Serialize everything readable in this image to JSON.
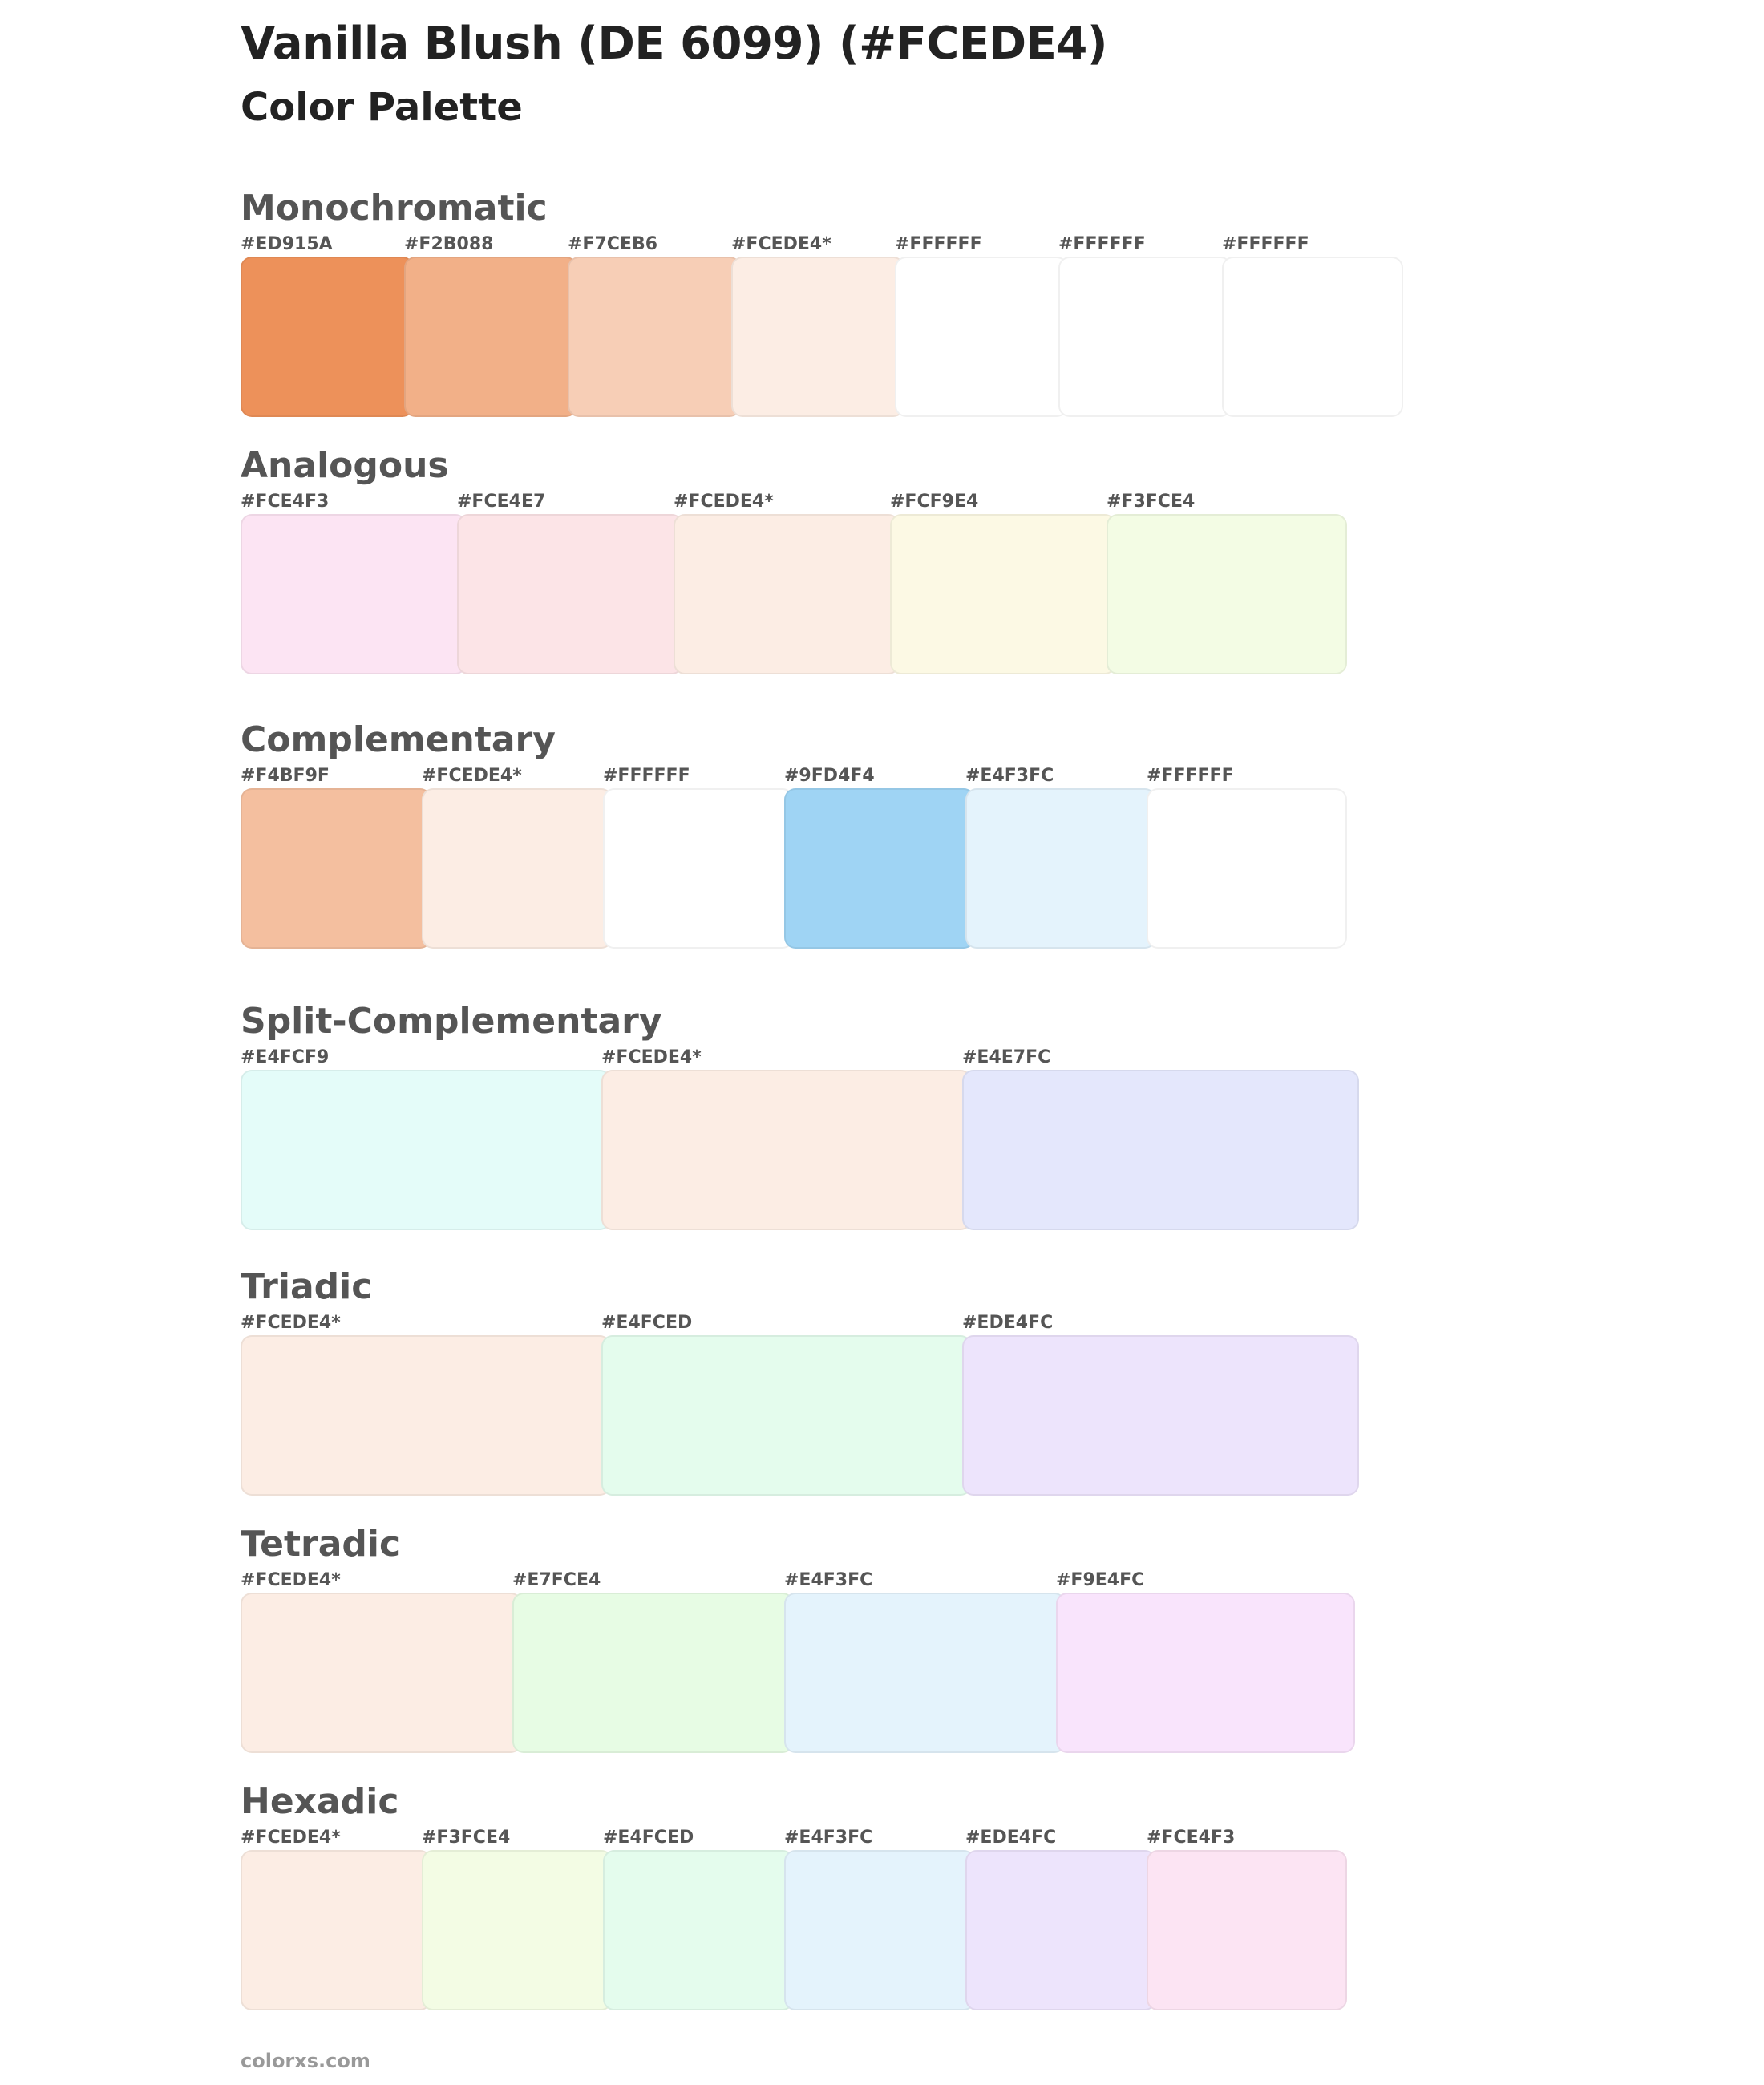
{
  "title": "Vanilla Blush (DE 6099) (#FCEDE4)",
  "subtitle": "Color Palette",
  "footer": "colorxs.com",
  "sections": [
    {
      "name": "Monochromatic",
      "swatches": [
        {
          "label": "#ED915A",
          "color": "#ED915A"
        },
        {
          "label": "#F2B088",
          "color": "#F2B088"
        },
        {
          "label": "#F7CEB6",
          "color": "#F7CEB6"
        },
        {
          "label": "#FCEDE4*",
          "color": "#FCEDE4"
        },
        {
          "label": "#FFFFFF",
          "color": "#FFFFFF"
        },
        {
          "label": "#FFFFFF",
          "color": "#FFFFFF"
        },
        {
          "label": "#FFFFFF",
          "color": "#FFFFFF"
        }
      ]
    },
    {
      "name": "Analogous",
      "swatches": [
        {
          "label": "#FCE4F3",
          "color": "#FCE4F3"
        },
        {
          "label": "#FCE4E7",
          "color": "#FCE4E7"
        },
        {
          "label": "#FCEDE4*",
          "color": "#FCEDE4"
        },
        {
          "label": "#FCF9E4",
          "color": "#FCF9E4"
        },
        {
          "label": "#F3FCE4",
          "color": "#F3FCE4"
        }
      ]
    },
    {
      "name": "Complementary",
      "swatches": [
        {
          "label": "#F4BF9F",
          "color": "#F4BF9F"
        },
        {
          "label": "#FCEDE4*",
          "color": "#FCEDE4"
        },
        {
          "label": "#FFFFFF",
          "color": "#FFFFFF"
        },
        {
          "label": "#9FD4F4",
          "color": "#9FD4F4"
        },
        {
          "label": "#E4F3FC",
          "color": "#E4F3FC"
        },
        {
          "label": "#FFFFFF",
          "color": "#FFFFFF"
        }
      ]
    },
    {
      "name": "Split-Complementary",
      "swatches": [
        {
          "label": "#E4FCF9",
          "color": "#E4FCF9"
        },
        {
          "label": "#FCEDE4*",
          "color": "#FCEDE4"
        },
        {
          "label": "#E4E7FC",
          "color": "#E4E7FC"
        }
      ]
    },
    {
      "name": "Triadic",
      "swatches": [
        {
          "label": "#FCEDE4*",
          "color": "#FCEDE4"
        },
        {
          "label": "#E4FCED",
          "color": "#E4FCED"
        },
        {
          "label": "#EDE4FC",
          "color": "#EDE4FC"
        }
      ]
    },
    {
      "name": "Tetradic",
      "swatches": [
        {
          "label": "#FCEDE4*",
          "color": "#FCEDE4"
        },
        {
          "label": "#E7FCE4",
          "color": "#E7FCE4"
        },
        {
          "label": "#E4F3FC",
          "color": "#E4F3FC"
        },
        {
          "label": "#F9E4FC",
          "color": "#F9E4FC"
        }
      ]
    },
    {
      "name": "Hexadic",
      "swatches": [
        {
          "label": "#FCEDE4*",
          "color": "#FCEDE4"
        },
        {
          "label": "#F3FCE4",
          "color": "#F3FCE4"
        },
        {
          "label": "#E4FCED",
          "color": "#E4FCED"
        },
        {
          "label": "#E4F3FC",
          "color": "#E4F3FC"
        },
        {
          "label": "#EDE4FC",
          "color": "#EDE4FC"
        },
        {
          "label": "#FCE4F3",
          "color": "#FCE4F3"
        }
      ]
    }
  ]
}
